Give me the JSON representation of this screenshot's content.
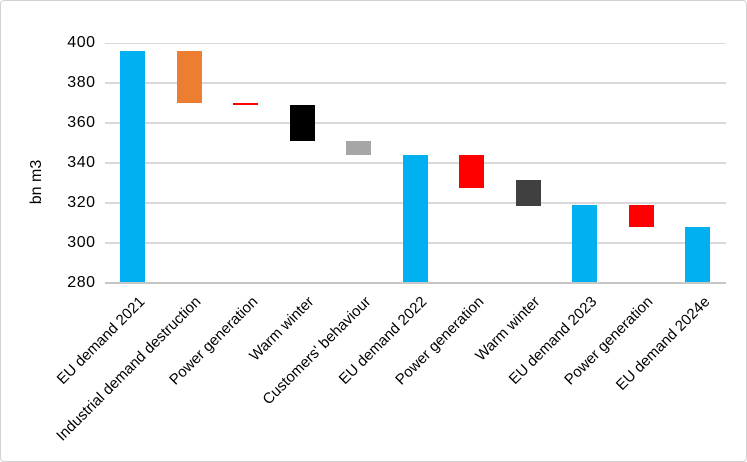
{
  "chart_data": {
    "type": "bar",
    "subtype": "waterfall",
    "title": "",
    "xlabel": "",
    "ylabel": "bn m3",
    "ylim": [
      280,
      400
    ],
    "yticks": [
      280,
      300,
      320,
      340,
      360,
      380,
      400
    ],
    "grid": true,
    "legend": false,
    "categories": [
      "EU demand 2021",
      "Industrial demand destruction",
      "Power generation",
      "Warm winter",
      "Customers' behaviour",
      "EU demand 2022",
      "Power generation",
      "Warm winter",
      "EU demand 2023",
      "Power generation",
      "EU demand 2024e"
    ],
    "bars": [
      {
        "label": "EU demand 2021",
        "from": 280,
        "to": 396,
        "color": "#00B0F0"
      },
      {
        "label": "Industrial demand destruction",
        "from": 370,
        "to": 396,
        "color": "#ED7D31"
      },
      {
        "label": "Power generation",
        "from": 369,
        "to": 370,
        "color": "#FF0000"
      },
      {
        "label": "Warm winter",
        "from": 351,
        "to": 369,
        "color": "#000000"
      },
      {
        "label": "Customers' behaviour",
        "from": 344,
        "to": 351,
        "color": "#A6A6A6"
      },
      {
        "label": "EU demand 2022",
        "from": 280,
        "to": 344,
        "color": "#00B0F0"
      },
      {
        "label": "Power generation",
        "from": 327.5,
        "to": 344,
        "color": "#FF0000"
      },
      {
        "label": "Warm winter",
        "from": 318.5,
        "to": 331.5,
        "color": "#404040"
      },
      {
        "label": "EU demand 2023",
        "from": 280,
        "to": 319,
        "color": "#00B0F0"
      },
      {
        "label": "Power generation",
        "from": 308,
        "to": 319,
        "color": "#FF0000"
      },
      {
        "label": "EU demand 2024e",
        "from": 280,
        "to": 308,
        "color": "#00B0F0"
      }
    ],
    "colors": {
      "total_bar": "#00B0F0",
      "industrial": "#ED7D31",
      "power_generation": "#FF0000",
      "warm_winter_2022": "#000000",
      "customers_behaviour": "#A6A6A6",
      "warm_winter_2023": "#404040",
      "gridline": "#D9D9D9"
    }
  }
}
